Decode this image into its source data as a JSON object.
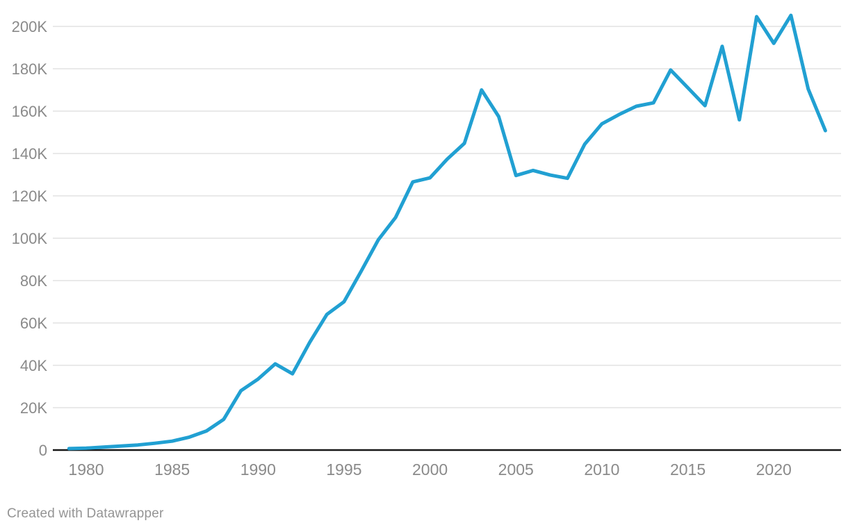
{
  "caption": "Created with Datawrapper",
  "colors": {
    "line": "#21a0d2",
    "grid": "#e2e2e2",
    "baseline": "#161616",
    "tick_label": "#8a8a8a",
    "caption": "#949494",
    "background": "#ffffff"
  },
  "chart_data": {
    "type": "line",
    "title": "",
    "xlabel": "",
    "ylabel": "",
    "x": [
      1979,
      1980,
      1981,
      1982,
      1983,
      1984,
      1985,
      1986,
      1987,
      1988,
      1989,
      1990,
      1991,
      1992,
      1993,
      1994,
      1995,
      1996,
      1997,
      1998,
      1999,
      2000,
      2001,
      2002,
      2003,
      2004,
      2005,
      2006,
      2007,
      2008,
      2009,
      2010,
      2011,
      2012,
      2013,
      2014,
      2015,
      2016,
      2017,
      2018,
      2019,
      2020,
      2021,
      2022,
      2023
    ],
    "values": [
      700,
      900,
      1400,
      1900,
      2400,
      3200,
      4200,
      6100,
      9000,
      14500,
      28000,
      33500,
      40700,
      36000,
      50800,
      64000,
      70000,
      84500,
      99300,
      109800,
      126600,
      128500,
      137300,
      144800,
      170000,
      157400,
      129600,
      132000,
      129800,
      128300,
      144400,
      154000,
      158400,
      162300,
      163900,
      179400,
      171000,
      162600,
      190600,
      155900,
      204600,
      192000,
      205200,
      170500,
      150800
    ],
    "xlim": [
      1979,
      2023
    ],
    "ylim": [
      0,
      200000
    ],
    "x_ticks": [
      1980,
      1985,
      1990,
      1995,
      2000,
      2005,
      2010,
      2015,
      2020
    ],
    "y_ticks": [
      {
        "value": 0,
        "label": "0"
      },
      {
        "value": 20000,
        "label": "20K"
      },
      {
        "value": 40000,
        "label": "40K"
      },
      {
        "value": 60000,
        "label": "60K"
      },
      {
        "value": 80000,
        "label": "80K"
      },
      {
        "value": 100000,
        "label": "100K"
      },
      {
        "value": 120000,
        "label": "120K"
      },
      {
        "value": 140000,
        "label": "140K"
      },
      {
        "value": 160000,
        "label": "160K"
      },
      {
        "value": 180000,
        "label": "180K"
      },
      {
        "value": 200000,
        "label": "200K"
      }
    ],
    "grid": "horizontal",
    "legend": "none"
  }
}
